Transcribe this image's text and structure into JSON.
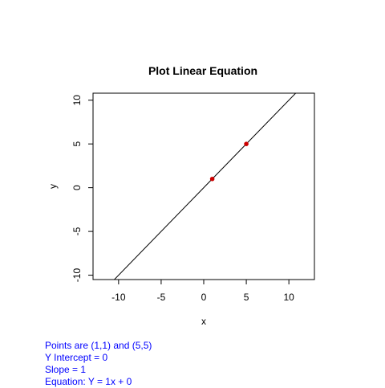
{
  "chart_data": {
    "type": "line",
    "title": "Plot Linear Equation",
    "xlabel": "x",
    "ylabel": "y",
    "xlim": [
      -13,
      13
    ],
    "ylim": [
      -10.5,
      10.8
    ],
    "x_ticks": [
      -10,
      -5,
      0,
      5,
      10
    ],
    "y_ticks": [
      -10,
      -5,
      0,
      5,
      10
    ],
    "grid": false,
    "line": {
      "slope": 1,
      "intercept": 0,
      "color": "#000000"
    },
    "points": [
      {
        "x": 1,
        "y": 1
      },
      {
        "x": 5,
        "y": 5
      }
    ],
    "point_color": "#cc0000"
  },
  "annotations": {
    "color": "#0000ff",
    "lines": [
      "Points are (1,1) and (5,5)",
      "Y Intercept = 0",
      "Slope = 1",
      "Equation: Y = 1x + 0"
    ]
  }
}
